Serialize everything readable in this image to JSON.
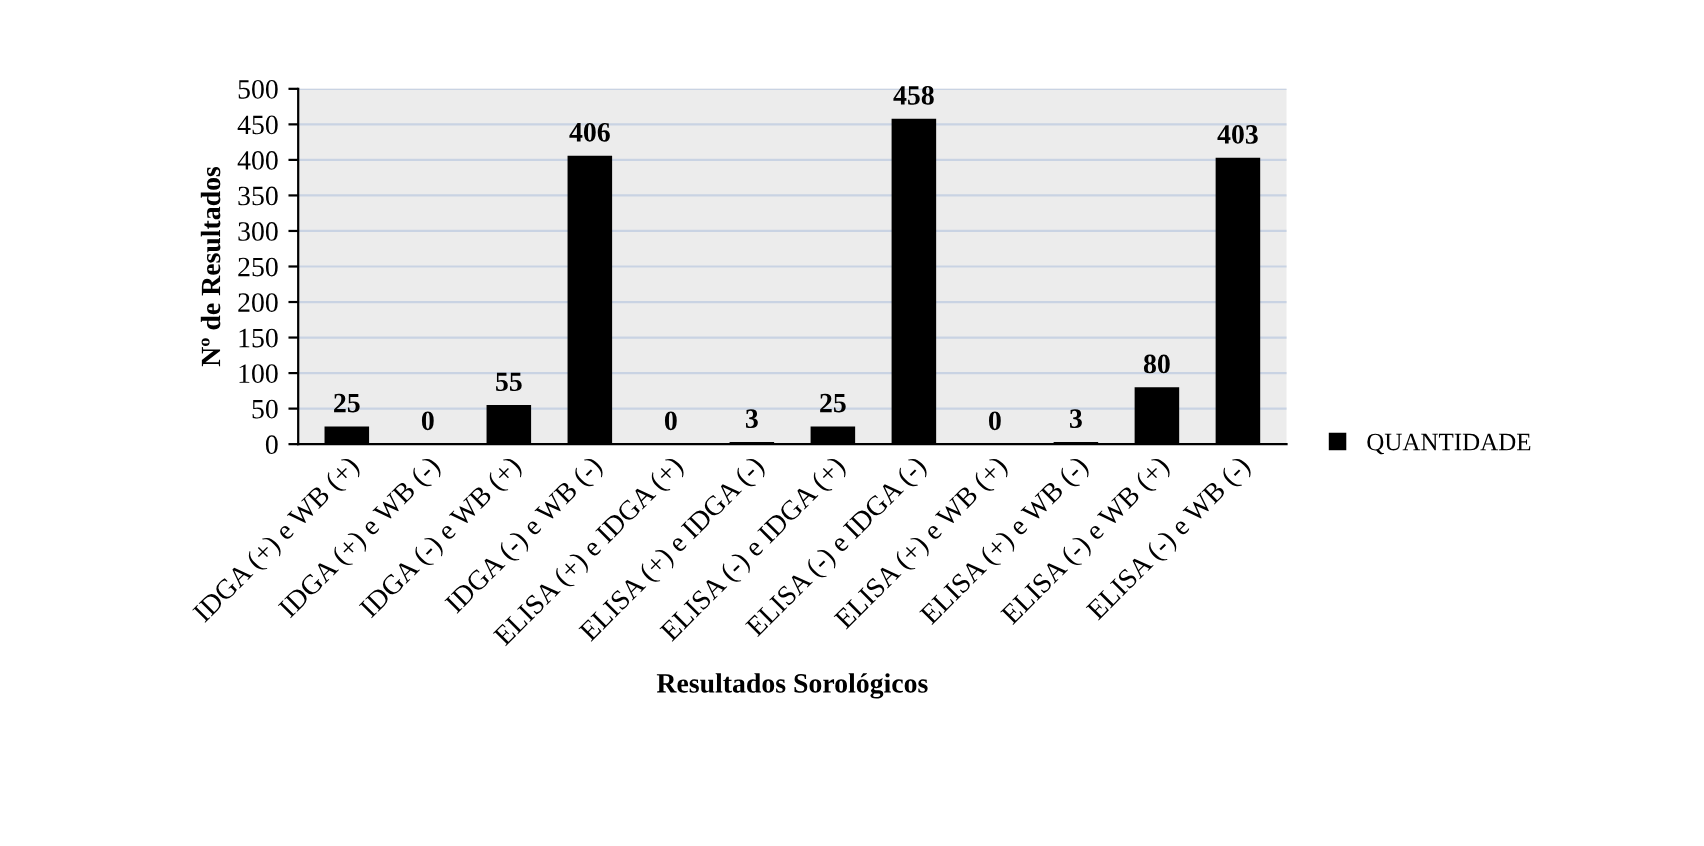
{
  "chart_data": {
    "type": "bar",
    "xlabel": "Resultados Sorológicos",
    "ylabel": "Nº de Resultados",
    "categories": [
      "IDGA (+) e WB (+)",
      "IDGA (+) e WB (-)",
      "IDGA (-) e WB (+)",
      "IDGA (-) e WB (-)",
      "ELISA (+) e IDGA (+)",
      "ELISA (+) e IDGA (-)",
      "ELISA (-) e IDGA (+)",
      "ELISA (-) e IDGA (-)",
      "ELISA (+) e WB (+)",
      "ELISA (+) e WB (-)",
      "ELISA (-) e WB (+)",
      "ELISA (-) e WB (-)"
    ],
    "series": [
      {
        "name": "QUANTIDADE",
        "color": "#000000",
        "values": [
          25,
          0,
          55,
          406,
          0,
          3,
          25,
          458,
          0,
          3,
          80,
          403
        ]
      }
    ],
    "ylim": [
      0,
      500
    ],
    "yticks": [
      0,
      50,
      100,
      150,
      200,
      250,
      300,
      350,
      400,
      450,
      500
    ],
    "grid": "y",
    "legend": "right",
    "data_labels": true
  }
}
